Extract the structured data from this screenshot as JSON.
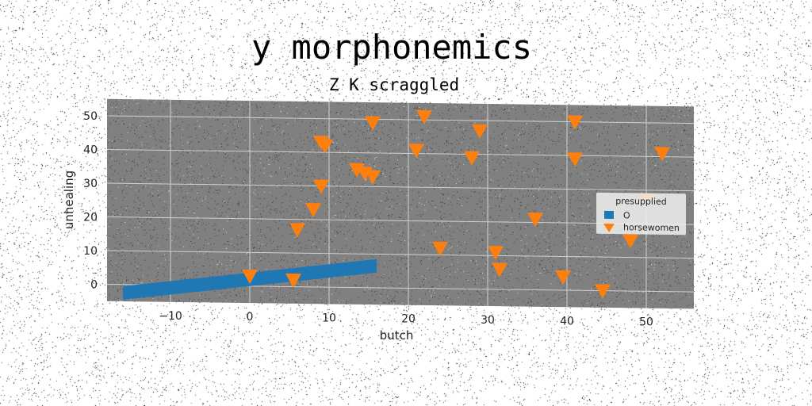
{
  "chart_data": {
    "type": "scatter",
    "title": "y morphonemics",
    "subtitle": "Z K scraggled",
    "xlabel": "butch",
    "ylabel": "unhealing",
    "xlim": [
      -18,
      56
    ],
    "ylim": [
      -5,
      55
    ],
    "xticks": [
      -10,
      0,
      10,
      20,
      30,
      40,
      50
    ],
    "yticks": [
      0,
      10,
      20,
      30,
      40,
      50
    ],
    "grid": true,
    "background": "#808080",
    "legend": {
      "title": "presupplied",
      "placement": "right",
      "entries": [
        {
          "label": "O",
          "color": "#1f77b4",
          "marker": "square"
        },
        {
          "label": "horsewomen",
          "color": "#ff7f0e",
          "marker": "triangle-down"
        }
      ]
    },
    "series": [
      {
        "name": "O",
        "kind": "band",
        "color": "#1f77b4",
        "x": [
          -16,
          16
        ],
        "upper": [
          -0.5,
          8.5
        ],
        "lower": [
          -4.5,
          4.5
        ]
      },
      {
        "name": "horsewomen",
        "kind": "points",
        "color": "#ff7f0e",
        "points": [
          [
            0,
            3
          ],
          [
            5.5,
            2
          ],
          [
            6,
            17
          ],
          [
            8,
            23
          ],
          [
            9,
            30
          ],
          [
            9,
            43
          ],
          [
            9.5,
            42
          ],
          [
            13.5,
            35
          ],
          [
            14.5,
            34
          ],
          [
            15.5,
            33
          ],
          [
            15.5,
            49
          ],
          [
            21,
            41
          ],
          [
            22,
            51
          ],
          [
            24,
            12
          ],
          [
            28,
            39
          ],
          [
            29,
            47
          ],
          [
            31,
            11
          ],
          [
            31.5,
            6
          ],
          [
            36,
            21
          ],
          [
            39.5,
            4
          ],
          [
            41,
            39
          ],
          [
            41,
            50
          ],
          [
            44.5,
            0
          ],
          [
            48,
            15
          ],
          [
            50,
            27
          ],
          [
            52,
            41
          ]
        ]
      }
    ]
  }
}
